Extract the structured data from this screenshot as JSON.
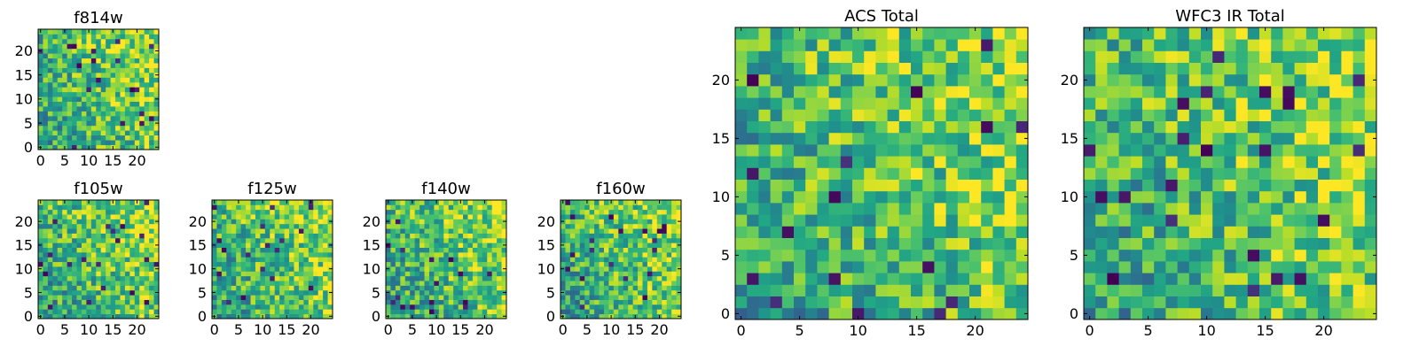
{
  "chart_data": [
    {
      "type": "heatmap",
      "title": "f814w",
      "x_range": [
        0,
        24
      ],
      "y_range": [
        0,
        24
      ],
      "x_ticks": [
        0,
        5,
        10,
        15,
        20
      ],
      "y_ticks": [
        0,
        5,
        10,
        15,
        20
      ],
      "colormap": "viridis",
      "grid_size": 25
    },
    {
      "type": "heatmap",
      "title": "f105w",
      "x_range": [
        0,
        24
      ],
      "y_range": [
        0,
        24
      ],
      "x_ticks": [
        0,
        5,
        10,
        15,
        20
      ],
      "y_ticks": [
        0,
        5,
        10,
        15,
        20
      ],
      "colormap": "viridis",
      "grid_size": 25
    },
    {
      "type": "heatmap",
      "title": "f125w",
      "x_range": [
        0,
        24
      ],
      "y_range": [
        0,
        24
      ],
      "x_ticks": [
        0,
        5,
        10,
        15,
        20
      ],
      "y_ticks": [
        0,
        5,
        10,
        15,
        20
      ],
      "colormap": "viridis",
      "grid_size": 25
    },
    {
      "type": "heatmap",
      "title": "f140w",
      "x_range": [
        0,
        24
      ],
      "y_range": [
        0,
        24
      ],
      "x_ticks": [
        0,
        5,
        10,
        15,
        20
      ],
      "y_ticks": [
        0,
        5,
        10,
        15,
        20
      ],
      "colormap": "viridis",
      "grid_size": 25
    },
    {
      "type": "heatmap",
      "title": "f160w",
      "x_range": [
        0,
        24
      ],
      "y_range": [
        0,
        24
      ],
      "x_ticks": [
        0,
        5,
        10,
        15,
        20
      ],
      "y_ticks": [
        0,
        5,
        10,
        15,
        20
      ],
      "colormap": "viridis",
      "grid_size": 25
    },
    {
      "type": "heatmap",
      "title": "ACS Total",
      "x_range": [
        0,
        24
      ],
      "y_range": [
        0,
        24
      ],
      "x_ticks": [
        0,
        5,
        10,
        15,
        20
      ],
      "y_ticks": [
        0,
        5,
        10,
        15,
        20
      ],
      "colormap": "viridis",
      "grid_size": 25
    },
    {
      "type": "heatmap",
      "title": "WFC3 IR Total",
      "x_range": [
        0,
        24
      ],
      "y_range": [
        0,
        24
      ],
      "x_ticks": [
        0,
        5,
        10,
        15,
        20
      ],
      "y_ticks": [
        0,
        5,
        10,
        15,
        20
      ],
      "colormap": "viridis",
      "grid_size": 25
    }
  ]
}
